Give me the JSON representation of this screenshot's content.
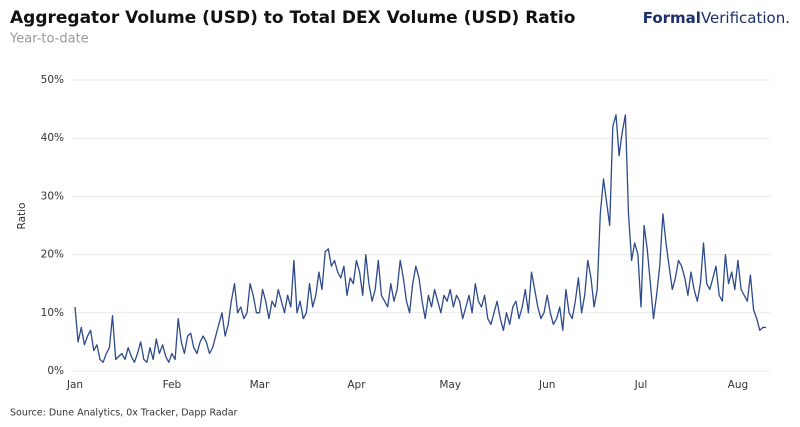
{
  "branding": {
    "bold": "Formal",
    "rest": "Verification."
  },
  "chart_data": {
    "type": "line",
    "title": "Aggregator Volume (USD) to Total DEX Volume (USD) Ratio",
    "subtitle": "Year-to-date",
    "y_label": "Ratio",
    "source": "Source: Dune Analytics, 0x Tracker, Dapp Radar",
    "color": "#2d4a8a",
    "grid": true,
    "ylim": [
      0,
      50
    ],
    "yticks": [
      {
        "value": 0,
        "label": "0%"
      },
      {
        "value": 10,
        "label": "10%"
      },
      {
        "value": 20,
        "label": "20%"
      },
      {
        "value": 30,
        "label": "30%"
      },
      {
        "value": 40,
        "label": "40%"
      },
      {
        "value": 50,
        "label": "50%"
      }
    ],
    "categories": [
      "Jan",
      null,
      null,
      null,
      null,
      null,
      null,
      null,
      null,
      null,
      null,
      null,
      null,
      null,
      null,
      null,
      null,
      null,
      null,
      null,
      null,
      null,
      null,
      null,
      null,
      null,
      null,
      null,
      null,
      null,
      null,
      "Feb",
      null,
      null,
      null,
      null,
      null,
      null,
      null,
      null,
      null,
      null,
      null,
      null,
      null,
      null,
      null,
      null,
      null,
      null,
      null,
      null,
      null,
      null,
      null,
      null,
      null,
      null,
      null,
      "Mar",
      null,
      null,
      null,
      null,
      null,
      null,
      null,
      null,
      null,
      null,
      null,
      null,
      null,
      null,
      null,
      null,
      null,
      null,
      null,
      null,
      null,
      null,
      null,
      null,
      null,
      null,
      null,
      null,
      null,
      null,
      "Apr",
      null,
      null,
      null,
      null,
      null,
      null,
      null,
      null,
      null,
      null,
      null,
      null,
      null,
      null,
      null,
      null,
      null,
      null,
      null,
      null,
      null,
      null,
      null,
      null,
      null,
      null,
      null,
      null,
      null,
      "May",
      null,
      null,
      null,
      null,
      null,
      null,
      null,
      null,
      null,
      null,
      null,
      null,
      null,
      null,
      null,
      null,
      null,
      null,
      null,
      null,
      null,
      null,
      null,
      null,
      null,
      null,
      null,
      null,
      null,
      null,
      "Jun",
      null,
      null,
      null,
      null,
      null,
      null,
      null,
      null,
      null,
      null,
      null,
      null,
      null,
      null,
      null,
      null,
      null,
      null,
      null,
      null,
      null,
      null,
      null,
      null,
      null,
      null,
      null,
      null,
      null,
      "Jul",
      null,
      null,
      null,
      null,
      null,
      null,
      null,
      null,
      null,
      null,
      null,
      null,
      null,
      null,
      null,
      null,
      null,
      null,
      null,
      null,
      null,
      null,
      null,
      null,
      null,
      null,
      null,
      null,
      null,
      null,
      "Aug",
      null,
      null,
      null,
      null,
      null,
      null,
      null,
      null,
      null
    ],
    "values": [
      11,
      5,
      7.5,
      4.5,
      6,
      7,
      3.5,
      4.5,
      2,
      1.5,
      3,
      4,
      9.5,
      2,
      2.5,
      3,
      2,
      4,
      2.5,
      1.5,
      3,
      5,
      2,
      1.5,
      4,
      2,
      5.5,
      3,
      4.5,
      2.5,
      1.5,
      3,
      2,
      9,
      5,
      3,
      6,
      6.5,
      4,
      3,
      5,
      6,
      5,
      3,
      4,
      6,
      8,
      10,
      6,
      8,
      12,
      15,
      10,
      11,
      9,
      10,
      15,
      13,
      10,
      10,
      14,
      12,
      9,
      12,
      11,
      14,
      12,
      10,
      13,
      11,
      19,
      10,
      12,
      9,
      10,
      15,
      11,
      13,
      17,
      14,
      20.5,
      21,
      18,
      19,
      17,
      16,
      18,
      13,
      16,
      15,
      19,
      17,
      13,
      20,
      15,
      12,
      14,
      19,
      13,
      12,
      11,
      15,
      12,
      14,
      19,
      16,
      12,
      10,
      15,
      18,
      16,
      12,
      9,
      13,
      11,
      14,
      12,
      10,
      13,
      12,
      14,
      11,
      13,
      12,
      9,
      11,
      13,
      10,
      15,
      12,
      11,
      13,
      9,
      8,
      10,
      12,
      9,
      7,
      10,
      8,
      11,
      12,
      9,
      11,
      14,
      10,
      17,
      14,
      11,
      9,
      10,
      13,
      10,
      8,
      9,
      11,
      7,
      14,
      10,
      9,
      12,
      16,
      10,
      13,
      19,
      16,
      11,
      14,
      27,
      33,
      29,
      25,
      42,
      44,
      37,
      41,
      44,
      27,
      19,
      22,
      20,
      11,
      25,
      21,
      15,
      9,
      13,
      18,
      27,
      22,
      18,
      14,
      16,
      19,
      18,
      16,
      13,
      17,
      14,
      12,
      15,
      22,
      15,
      14,
      16,
      18,
      13,
      12,
      20,
      15,
      17,
      14,
      19,
      14,
      13,
      12,
      16.5,
      10.5,
      9,
      7,
      7.5,
      7.5
    ]
  }
}
